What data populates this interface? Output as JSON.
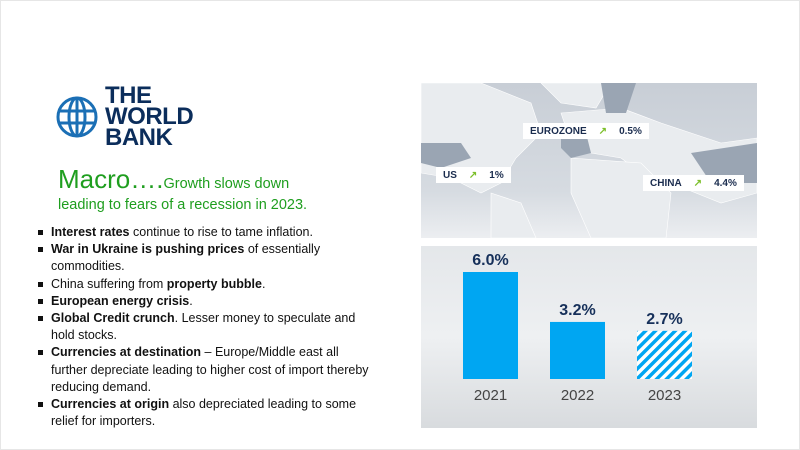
{
  "logo": {
    "line1": "THE",
    "line2": "WORLD",
    "line3": "BANK"
  },
  "headline": {
    "big": "Macro….",
    "small": "Growth slows down",
    "line2": "leading to fears of a recession in 2023."
  },
  "bullets": [
    [
      {
        "t": "Interest rates",
        "b": true
      },
      {
        "t": " continue to rise to tame inflation.",
        "b": false
      }
    ],
    [
      {
        "t": "War in Ukraine is pushing prices",
        "b": true
      },
      {
        "t": " of essentially commodities.",
        "b": false
      }
    ],
    [
      {
        "t": "China suffering from ",
        "b": false
      },
      {
        "t": "property bubble",
        "b": true
      },
      {
        "t": ".",
        "b": false
      }
    ],
    [
      {
        "t": "European energy crisis",
        "b": true
      },
      {
        "t": ".",
        "b": false
      }
    ],
    [
      {
        "t": "Global Credit crunch",
        "b": true
      },
      {
        "t": ". Lesser money to speculate and hold stocks.",
        "b": false
      }
    ],
    [
      {
        "t": "Currencies at destination",
        "b": true
      },
      {
        "t": " – Europe/Middle east all further depreciate leading to higher cost of import thereby reducing demand.",
        "b": false
      }
    ],
    [
      {
        "t": "Currencies at origin",
        "b": true
      },
      {
        "t": " also depreciated leading to some relief for importers.",
        "b": false
      }
    ]
  ],
  "map_tags": [
    {
      "region": "EUROZONE",
      "arrow": "↗",
      "value": "0.5%"
    },
    {
      "region": "US",
      "arrow": "↗",
      "value": "1%"
    },
    {
      "region": "CHINA",
      "arrow": "↗",
      "value": "4.4%"
    }
  ],
  "chart_data": {
    "type": "bar",
    "categories": [
      "2021",
      "2022",
      "2023"
    ],
    "values": [
      6.0,
      3.2,
      2.7
    ],
    "labels": [
      "6.0%",
      "3.2%",
      "2.7%"
    ],
    "forecast": [
      false,
      false,
      true
    ],
    "ylim": [
      0,
      6.0
    ],
    "colors": {
      "bar": "#00a6f2",
      "label": "#16305a",
      "year": "#444444"
    }
  }
}
